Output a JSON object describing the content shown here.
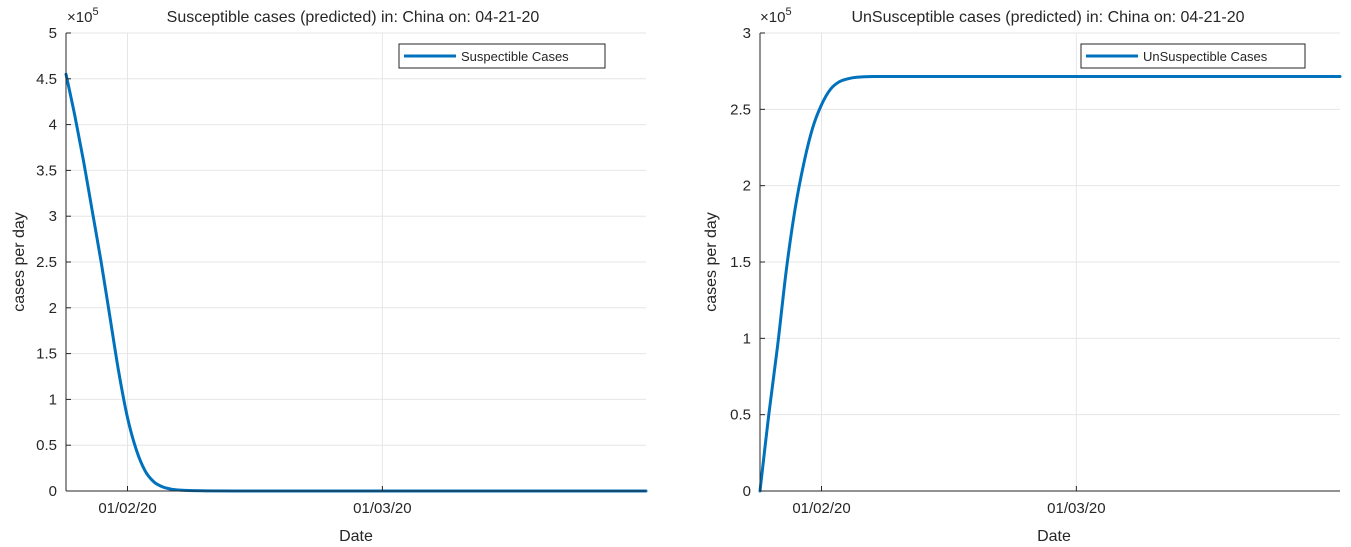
{
  "chart_data": [
    {
      "type": "line",
      "title": "Susceptible cases (predicted) in: China on: 04-21-20",
      "xlabel": "Date",
      "ylabel": "cases per day",
      "exponent_base": "×10",
      "exponent_power": "5",
      "x_ticks": [
        {
          "date": "2020-02-01",
          "label": "01/02/20"
        },
        {
          "date": "2020-03-01",
          "label": "01/03/20"
        }
      ],
      "y_ticks": [
        {
          "value": 0,
          "label": "0"
        },
        {
          "value": 0.5,
          "label": "0.5"
        },
        {
          "value": 1,
          "label": "1"
        },
        {
          "value": 1.5,
          "label": "1.5"
        },
        {
          "value": 2,
          "label": "2"
        },
        {
          "value": 2.5,
          "label": "2.5"
        },
        {
          "value": 3,
          "label": "3"
        },
        {
          "value": 3.5,
          "label": "3.5"
        },
        {
          "value": 4,
          "label": "4"
        },
        {
          "value": 4.5,
          "label": "4.5"
        },
        {
          "value": 5,
          "label": "5"
        }
      ],
      "xlim": [
        "2020-01-25",
        "2020-03-31"
      ],
      "ylim": [
        0,
        5
      ],
      "grid": true,
      "legend_position": "top-right",
      "series": [
        {
          "name": "Suspectible Cases",
          "color": "#0072bd",
          "x": [
            "2020-01-25",
            "2020-01-26",
            "2020-01-27",
            "2020-01-28",
            "2020-01-29",
            "2020-01-30",
            "2020-01-31",
            "2020-02-01",
            "2020-02-02",
            "2020-02-03",
            "2020-02-04",
            "2020-02-05",
            "2020-02-06",
            "2020-02-07",
            "2020-02-08",
            "2020-02-10",
            "2020-02-15",
            "2020-02-20",
            "2020-03-01",
            "2020-03-15",
            "2020-03-31"
          ],
          "values": [
            4.55,
            4.1,
            3.6,
            3.05,
            2.5,
            1.9,
            1.3,
            0.8,
            0.45,
            0.22,
            0.1,
            0.045,
            0.02,
            0.01,
            0.005,
            0.002,
            0,
            0,
            0,
            0,
            0
          ]
        }
      ]
    },
    {
      "type": "line",
      "title": "UnSusceptible cases (predicted) in: China on: 04-21-20",
      "xlabel": "Date",
      "ylabel": "cases per day",
      "exponent_base": "×10",
      "exponent_power": "5",
      "x_ticks": [
        {
          "date": "2020-02-01",
          "label": "01/02/20"
        },
        {
          "date": "2020-03-01",
          "label": "01/03/20"
        }
      ],
      "y_ticks": [
        {
          "value": 0,
          "label": "0"
        },
        {
          "value": 0.5,
          "label": "0.5"
        },
        {
          "value": 1,
          "label": "1"
        },
        {
          "value": 1.5,
          "label": "1.5"
        },
        {
          "value": 2,
          "label": "2"
        },
        {
          "value": 2.5,
          "label": "2.5"
        },
        {
          "value": 3,
          "label": "3"
        }
      ],
      "xlim": [
        "2020-01-25",
        "2020-03-31"
      ],
      "ylim": [
        0,
        3
      ],
      "grid": true,
      "legend_position": "top-right",
      "series": [
        {
          "name": "UnSuspectible Cases",
          "color": "#0072bd",
          "x": [
            "2020-01-25",
            "2020-01-26",
            "2020-01-27",
            "2020-01-28",
            "2020-01-29",
            "2020-01-30",
            "2020-01-31",
            "2020-02-01",
            "2020-02-02",
            "2020-02-03",
            "2020-02-04",
            "2020-02-05",
            "2020-02-07",
            "2020-02-10",
            "2020-02-15",
            "2020-03-01",
            "2020-03-15",
            "2020-03-31"
          ],
          "values": [
            0,
            0.5,
            0.95,
            1.45,
            1.85,
            2.15,
            2.38,
            2.53,
            2.63,
            2.68,
            2.7,
            2.71,
            2.715,
            2.715,
            2.715,
            2.715,
            2.715,
            2.715
          ]
        }
      ]
    }
  ]
}
